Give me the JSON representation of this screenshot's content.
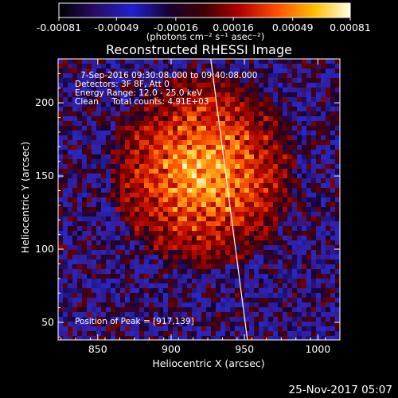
{
  "footer_timestamp": "25-Nov-2017 05:07",
  "colorbar": {
    "min": -0.00081,
    "max": 0.00081,
    "tick_labels": [
      "-0.00081",
      "-0.00049",
      "-0.00016",
      "0.00016",
      "0.00049",
      "0.00081"
    ],
    "unit_label": "(photons cm⁻² s⁻¹ asec⁻²)"
  },
  "chart_data": {
    "type": "heatmap",
    "title": "Reconstructed RHESSI Image",
    "xlabel": "Heliocentric X (arcsec)",
    "ylabel": "Heliocentric Y (arcsec)",
    "xlim": [
      823,
      1015
    ],
    "ylim": [
      38,
      230
    ],
    "x_ticks": [
      850,
      900,
      950,
      1000
    ],
    "y_ticks": [
      50,
      100,
      150,
      200
    ],
    "annotations": [
      "7-Sep-2016 09:30:08.000 to 09:40:08.000",
      "Detectors: 3F 8F, Att 0",
      "Energy Range: 12.0 - 25.0 keV",
      "Clean     Total counts: 4.91E+03"
    ],
    "peak_label": "Position of Peak = [917,139]",
    "peak_position": [
      917,
      139
    ],
    "limb_line": {
      "x": [
        927,
        952
      ],
      "y": [
        230,
        38
      ]
    },
    "source_center": [
      920,
      155
    ],
    "colormap": "black-purple-blue-red-orange-yellow-white"
  }
}
